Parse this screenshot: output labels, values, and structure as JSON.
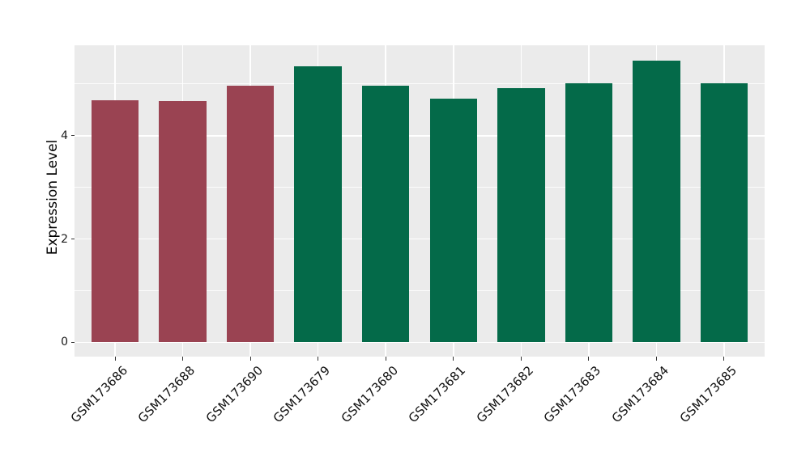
{
  "chart_data": {
    "type": "bar",
    "title": "",
    "xlabel": "",
    "ylabel": "Expression Level",
    "categories": [
      "GSM173686",
      "GSM173688",
      "GSM173690",
      "GSM173679",
      "GSM173680",
      "GSM173681",
      "GSM173682",
      "GSM173683",
      "GSM173684",
      "GSM173685"
    ],
    "values": [
      4.69,
      4.67,
      4.96,
      5.35,
      4.97,
      4.72,
      4.92,
      5.01,
      5.46,
      5.01
    ],
    "bar_colors": [
      "#9A4352",
      "#9A4352",
      "#9A4352",
      "#046A49",
      "#046A49",
      "#046A49",
      "#046A49",
      "#046A49",
      "#046A49",
      "#046A49"
    ],
    "yticks": [
      0,
      2,
      4
    ],
    "ytick_labels": [
      "0",
      "2",
      "4"
    ],
    "minor_yticks": [
      1,
      3,
      5
    ],
    "ylim": [
      0,
      5.75
    ],
    "grid": true,
    "legend": "none",
    "colors": {
      "group1_bar": "#9A4352",
      "group2_bar": "#046A49",
      "panel_background": "#EBEBEB",
      "gridline": "#FFFFFF",
      "tick_text": "#1a1a1a",
      "axis_title_text": "#000000"
    }
  }
}
